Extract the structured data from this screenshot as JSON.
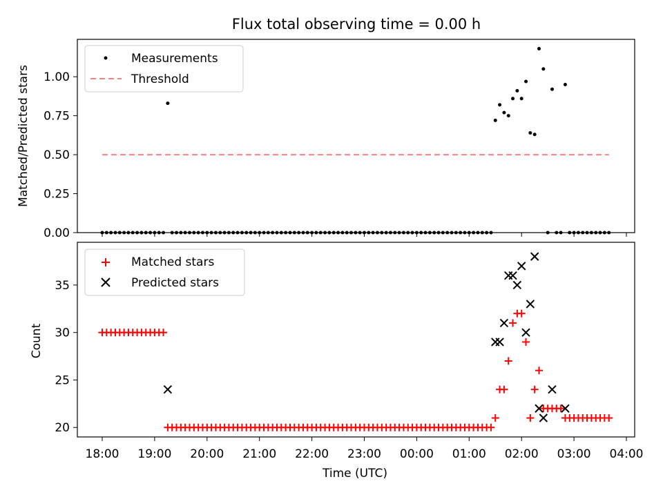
{
  "chart_data": [
    {
      "type": "scatter",
      "title": "Flux total observing time = 0.00 h",
      "ylabel": "Matched/Predicted stars",
      "xlabel": "",
      "ylim": [
        0,
        1.24
      ],
      "yticks": [
        "0.00",
        "0.25",
        "0.50",
        "0.75",
        "1.00"
      ],
      "grid": false,
      "legend_position": "upper-left",
      "series": [
        {
          "name": "Measurements",
          "marker": "dot",
          "color": "#000000",
          "x": [
            "18:00",
            "18:05",
            "18:10",
            "18:15",
            "18:20",
            "18:25",
            "18:30",
            "18:35",
            "18:40",
            "18:45",
            "18:50",
            "18:55",
            "19:00",
            "19:05",
            "19:10",
            "19:15",
            "19:20",
            "19:25",
            "19:30",
            "19:35",
            "19:40",
            "19:45",
            "19:50",
            "19:55",
            "20:00",
            "20:05",
            "20:10",
            "20:15",
            "20:20",
            "20:25",
            "20:30",
            "20:35",
            "20:40",
            "20:45",
            "20:50",
            "20:55",
            "21:00",
            "21:05",
            "21:10",
            "21:15",
            "21:20",
            "21:25",
            "21:30",
            "21:35",
            "21:40",
            "21:45",
            "21:50",
            "21:55",
            "22:00",
            "22:05",
            "22:10",
            "22:15",
            "22:20",
            "22:25",
            "22:30",
            "22:35",
            "22:40",
            "22:45",
            "22:50",
            "22:55",
            "23:00",
            "23:05",
            "23:10",
            "23:15",
            "23:20",
            "23:25",
            "23:30",
            "23:35",
            "23:40",
            "23:45",
            "23:50",
            "23:55",
            "00:00",
            "00:05",
            "00:10",
            "00:15",
            "00:20",
            "00:25",
            "00:30",
            "00:35",
            "00:40",
            "00:45",
            "00:50",
            "00:55",
            "01:00",
            "01:05",
            "01:10",
            "01:15",
            "01:20",
            "01:25",
            "01:30",
            "01:35",
            "01:40",
            "01:45",
            "01:50",
            "01:55",
            "02:00",
            "02:05",
            "02:10",
            "02:15",
            "02:20",
            "02:25",
            "02:30",
            "02:35",
            "02:40",
            "02:45",
            "02:50",
            "02:55",
            "03:00",
            "03:05",
            "03:10",
            "03:15",
            "03:20",
            "03:25",
            "03:30",
            "03:35",
            "03:40"
          ],
          "y": [
            0,
            0,
            0,
            0,
            0,
            0,
            0,
            0,
            0,
            0,
            0,
            0,
            0,
            0,
            0,
            0.83,
            0,
            0,
            0,
            0,
            0,
            0,
            0,
            0,
            0,
            0,
            0,
            0,
            0,
            0,
            0,
            0,
            0,
            0,
            0,
            0,
            0,
            0,
            0,
            0,
            0,
            0,
            0,
            0,
            0,
            0,
            0,
            0,
            0,
            0,
            0,
            0,
            0,
            0,
            0,
            0,
            0,
            0,
            0,
            0,
            0,
            0,
            0,
            0,
            0,
            0,
            0,
            0,
            0,
            0,
            0,
            0,
            0,
            0,
            0,
            0,
            0,
            0,
            0,
            0,
            0,
            0,
            0,
            0,
            0,
            0,
            0,
            0,
            0,
            0,
            0.72,
            0.82,
            0.77,
            0.75,
            0.86,
            0.91,
            0.86,
            0.97,
            0.64,
            0.63,
            1.18,
            1.05,
            0,
            0.92,
            0,
            0,
            0.95,
            0,
            0,
            0,
            0,
            0,
            0,
            0,
            0,
            0,
            0
          ]
        },
        {
          "name": "Threshold",
          "style": "dashed",
          "color": "#ff7f7f",
          "x": [
            "18:00",
            "03:40"
          ],
          "y": [
            0.5,
            0.5
          ]
        }
      ]
    },
    {
      "type": "scatter",
      "title": "",
      "ylabel": "Count",
      "xlabel": "Time (UTC)",
      "ylim": [
        19.0,
        39.5
      ],
      "yticks": [
        "20",
        "25",
        "30",
        "35"
      ],
      "xticks": [
        "18:00",
        "19:00",
        "20:00",
        "21:00",
        "22:00",
        "23:00",
        "00:00",
        "01:00",
        "02:00",
        "03:00",
        "04:00"
      ],
      "grid": false,
      "legend_position": "upper-left",
      "series": [
        {
          "name": "Matched stars",
          "marker": "plus",
          "color": "#ff0000",
          "x": [
            "18:00",
            "18:05",
            "18:10",
            "18:15",
            "18:20",
            "18:25",
            "18:30",
            "18:35",
            "18:40",
            "18:45",
            "18:50",
            "18:55",
            "19:00",
            "19:05",
            "19:10",
            "19:15",
            "19:20",
            "19:25",
            "19:30",
            "19:35",
            "19:40",
            "19:45",
            "19:50",
            "19:55",
            "20:00",
            "20:05",
            "20:10",
            "20:15",
            "20:20",
            "20:25",
            "20:30",
            "20:35",
            "20:40",
            "20:45",
            "20:50",
            "20:55",
            "21:00",
            "21:05",
            "21:10",
            "21:15",
            "21:20",
            "21:25",
            "21:30",
            "21:35",
            "21:40",
            "21:45",
            "21:50",
            "21:55",
            "22:00",
            "22:05",
            "22:10",
            "22:15",
            "22:20",
            "22:25",
            "22:30",
            "22:35",
            "22:40",
            "22:45",
            "22:50",
            "22:55",
            "23:00",
            "23:05",
            "23:10",
            "23:15",
            "23:20",
            "23:25",
            "23:30",
            "23:35",
            "23:40",
            "23:45",
            "23:50",
            "23:55",
            "00:00",
            "00:05",
            "00:10",
            "00:15",
            "00:20",
            "00:25",
            "00:30",
            "00:35",
            "00:40",
            "00:45",
            "00:50",
            "00:55",
            "01:00",
            "01:05",
            "01:10",
            "01:15",
            "01:20",
            "01:25",
            "01:30",
            "01:35",
            "01:40",
            "01:45",
            "01:50",
            "01:55",
            "02:00",
            "02:05",
            "02:10",
            "02:15",
            "02:20",
            "02:25",
            "02:30",
            "02:35",
            "02:40",
            "02:45",
            "02:50",
            "02:55",
            "03:00",
            "03:05",
            "03:10",
            "03:15",
            "03:20",
            "03:25",
            "03:30",
            "03:35",
            "03:40"
          ],
          "y": [
            30,
            30,
            30,
            30,
            30,
            30,
            30,
            30,
            30,
            30,
            30,
            30,
            30,
            30,
            30,
            20,
            20,
            20,
            20,
            20,
            20,
            20,
            20,
            20,
            20,
            20,
            20,
            20,
            20,
            20,
            20,
            20,
            20,
            20,
            20,
            20,
            20,
            20,
            20,
            20,
            20,
            20,
            20,
            20,
            20,
            20,
            20,
            20,
            20,
            20,
            20,
            20,
            20,
            20,
            20,
            20,
            20,
            20,
            20,
            20,
            20,
            20,
            20,
            20,
            20,
            20,
            20,
            20,
            20,
            20,
            20,
            20,
            20,
            20,
            20,
            20,
            20,
            20,
            20,
            20,
            20,
            20,
            20,
            20,
            20,
            20,
            20,
            20,
            20,
            20,
            21,
            24,
            24,
            27,
            31,
            32,
            32,
            29,
            21,
            24,
            26,
            22,
            22,
            22,
            22,
            22,
            21,
            21,
            21,
            21,
            21,
            21,
            21,
            21,
            21,
            21,
            21
          ]
        },
        {
          "name": "Predicted stars",
          "marker": "x",
          "color": "#000000",
          "x": [
            "19:15",
            "01:30",
            "01:35",
            "01:40",
            "01:45",
            "01:50",
            "01:55",
            "02:00",
            "02:05",
            "02:10",
            "02:15",
            "02:20",
            "02:25",
            "02:35",
            "02:50"
          ],
          "y": [
            24,
            29,
            29,
            31,
            36,
            36,
            35,
            37,
            30,
            33,
            38,
            22,
            21,
            24,
            22
          ]
        }
      ]
    }
  ]
}
